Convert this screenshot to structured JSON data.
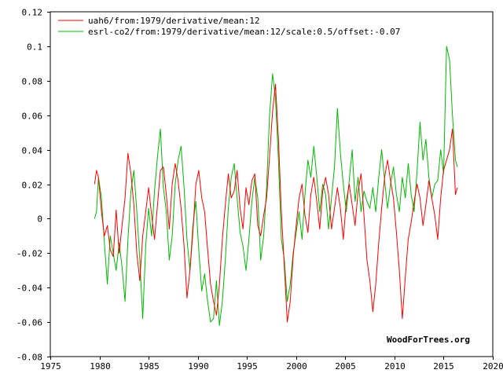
{
  "chart_data": {
    "type": "line",
    "title": "",
    "xlabel": "",
    "ylabel": "",
    "xlim": [
      1975,
      2020
    ],
    "ylim": [
      -0.08,
      0.12
    ],
    "grid": false,
    "legend_position": "top-left",
    "x_ticks": [
      1975,
      1980,
      1985,
      1990,
      1995,
      2000,
      2005,
      2010,
      2015,
      2020
    ],
    "x_tick_labels": [
      "1975",
      "1980",
      "1985",
      "1990",
      "1995",
      "2000",
      "2005",
      "2010",
      "2015",
      "2020"
    ],
    "y_ticks": [
      -0.08,
      -0.06,
      -0.04,
      -0.02,
      0,
      0.02,
      0.04,
      0.06,
      0.08,
      0.1,
      0.12
    ],
    "y_tick_labels": [
      "-0.08",
      "-0.06",
      "-0.04",
      "-0.02",
      "0",
      "0.02",
      "0.04",
      "0.06",
      "0.08",
      "0.1",
      "0.12"
    ],
    "credit": "WoodForTrees.org",
    "series": [
      {
        "name": "uah6/from:1979/derivative/mean:12",
        "color": "#ff0000",
        "x": [
          1979.5,
          1979.7,
          1979.9,
          1980.2,
          1980.5,
          1980.8,
          1981.1,
          1981.4,
          1981.7,
          1982.0,
          1982.3,
          1982.6,
          1982.9,
          1983.2,
          1983.5,
          1983.8,
          1984.1,
          1984.4,
          1984.7,
          1985.0,
          1985.3,
          1985.6,
          1985.9,
          1986.2,
          1986.5,
          1986.8,
          1987.1,
          1987.4,
          1987.7,
          1988.0,
          1988.3,
          1988.6,
          1988.9,
          1989.2,
          1989.5,
          1989.8,
          1990.1,
          1990.4,
          1990.7,
          1991.0,
          1991.3,
          1991.6,
          1991.9,
          1992.2,
          1992.5,
          1992.8,
          1993.1,
          1993.4,
          1993.7,
          1994.0,
          1994.3,
          1994.6,
          1994.9,
          1995.2,
          1995.5,
          1995.8,
          1996.1,
          1996.4,
          1996.7,
          1997.0,
          1997.3,
          1997.6,
          1997.9,
          1998.2,
          1998.5,
          1998.8,
          1999.1,
          1999.4,
          1999.7,
          2000.0,
          2000.3,
          2000.6,
          2000.9,
          2001.2,
          2001.5,
          2001.8,
          2002.1,
          2002.4,
          2002.7,
          2003.0,
          2003.3,
          2003.6,
          2003.9,
          2004.2,
          2004.5,
          2004.8,
          2005.1,
          2005.4,
          2005.7,
          2006.0,
          2006.3,
          2006.6,
          2006.9,
          2007.2,
          2007.5,
          2007.8,
          2008.1,
          2008.4,
          2008.7,
          2009.0,
          2009.3,
          2009.6,
          2009.9,
          2010.2,
          2010.5,
          2010.8,
          2011.1,
          2011.4,
          2011.7,
          2012.0,
          2012.3,
          2012.6,
          2012.9,
          2013.2,
          2013.5,
          2013.8,
          2014.1,
          2014.4,
          2014.7,
          2015.0,
          2015.3,
          2015.6,
          2015.9,
          2016.2,
          2016.4
        ],
        "values": [
          0.02,
          0.028,
          0.024,
          0.004,
          -0.01,
          -0.004,
          -0.018,
          -0.022,
          0.005,
          -0.02,
          -0.004,
          0.012,
          0.038,
          0.026,
          0.008,
          -0.02,
          -0.036,
          -0.01,
          0.004,
          0.018,
          0.002,
          -0.012,
          0.008,
          0.028,
          0.03,
          0.014,
          -0.006,
          0.02,
          0.032,
          0.022,
          0.006,
          -0.016,
          -0.046,
          -0.03,
          -0.008,
          0.02,
          0.028,
          0.012,
          0.004,
          -0.018,
          -0.038,
          -0.048,
          -0.056,
          -0.038,
          -0.012,
          0.008,
          0.026,
          0.012,
          0.016,
          0.028,
          0.006,
          -0.006,
          0.018,
          0.008,
          0.022,
          0.026,
          -0.004,
          -0.01,
          0.002,
          0.012,
          0.036,
          0.062,
          0.078,
          0.046,
          0.004,
          -0.028,
          -0.06,
          -0.048,
          -0.022,
          -0.004,
          0.012,
          0.02,
          0.002,
          -0.008,
          0.014,
          0.024,
          0.01,
          -0.006,
          0.016,
          0.024,
          0.014,
          -0.006,
          0.006,
          0.018,
          0.006,
          -0.012,
          0.01,
          0.02,
          0.008,
          -0.004,
          0.016,
          0.026,
          0.002,
          -0.024,
          -0.036,
          -0.054,
          -0.038,
          -0.014,
          0.006,
          0.024,
          0.034,
          0.022,
          0.012,
          -0.008,
          -0.03,
          -0.058,
          -0.034,
          -0.012,
          -0.002,
          0.01,
          0.02,
          0.012,
          -0.004,
          0.008,
          0.022,
          0.012,
          0.002,
          -0.012,
          0.012,
          0.028,
          0.034,
          0.04,
          0.052,
          0.014,
          0.018
        ],
        "width": 1
      },
      {
        "name": "esrl-co2/from:1979/derivative/mean:12/scale:0.5/offset:-0.07",
        "color": "#00bb00",
        "x": [
          1979.5,
          1979.7,
          1979.9,
          1980.2,
          1980.5,
          1980.8,
          1981.1,
          1981.4,
          1981.7,
          1982.0,
          1982.3,
          1982.6,
          1982.9,
          1983.2,
          1983.5,
          1983.8,
          1984.1,
          1984.4,
          1984.7,
          1985.0,
          1985.3,
          1985.6,
          1985.9,
          1986.2,
          1986.5,
          1986.8,
          1987.1,
          1987.4,
          1987.7,
          1988.0,
          1988.3,
          1988.6,
          1988.9,
          1989.2,
          1989.5,
          1989.8,
          1990.1,
          1990.4,
          1990.7,
          1991.0,
          1991.3,
          1991.6,
          1991.9,
          1992.2,
          1992.5,
          1992.8,
          1993.1,
          1993.4,
          1993.7,
          1994.0,
          1994.3,
          1994.6,
          1994.9,
          1995.2,
          1995.5,
          1995.8,
          1996.1,
          1996.4,
          1996.7,
          1997.0,
          1997.3,
          1997.6,
          1997.9,
          1998.2,
          1998.5,
          1998.8,
          1999.1,
          1999.4,
          1999.7,
          2000.0,
          2000.3,
          2000.6,
          2000.9,
          2001.2,
          2001.5,
          2001.8,
          2002.1,
          2002.4,
          2002.7,
          2003.0,
          2003.3,
          2003.6,
          2003.9,
          2004.2,
          2004.5,
          2004.8,
          2005.1,
          2005.4,
          2005.7,
          2006.0,
          2006.3,
          2006.6,
          2006.9,
          2007.2,
          2007.5,
          2007.8,
          2008.1,
          2008.4,
          2008.7,
          2009.0,
          2009.3,
          2009.6,
          2009.9,
          2010.2,
          2010.5,
          2010.8,
          2011.1,
          2011.4,
          2011.7,
          2012.0,
          2012.3,
          2012.6,
          2012.9,
          2013.2,
          2013.5,
          2013.8,
          2014.1,
          2014.4,
          2014.7,
          2015.0,
          2015.3,
          2015.6,
          2015.9,
          2016.2,
          2016.4
        ],
        "values": [
          0.0,
          0.004,
          0.024,
          0.012,
          -0.014,
          -0.038,
          -0.01,
          -0.02,
          -0.03,
          -0.014,
          -0.028,
          -0.048,
          -0.012,
          0.016,
          0.028,
          0.004,
          -0.024,
          -0.058,
          -0.016,
          0.006,
          -0.01,
          0.016,
          0.036,
          0.052,
          0.018,
          0.004,
          -0.024,
          -0.01,
          0.02,
          0.034,
          0.042,
          0.018,
          -0.012,
          -0.03,
          -0.004,
          0.01,
          -0.018,
          -0.042,
          -0.032,
          -0.048,
          -0.06,
          -0.058,
          -0.036,
          -0.062,
          -0.048,
          -0.024,
          0.006,
          0.024,
          0.032,
          0.012,
          -0.008,
          -0.016,
          -0.03,
          -0.012,
          0.01,
          0.024,
          0.012,
          -0.024,
          -0.01,
          0.018,
          0.06,
          0.084,
          0.07,
          0.034,
          -0.012,
          -0.024,
          -0.048,
          -0.038,
          -0.02,
          -0.008,
          0.004,
          -0.012,
          0.014,
          0.034,
          0.024,
          0.042,
          0.024,
          0.004,
          0.02,
          0.014,
          -0.006,
          0.012,
          0.03,
          0.064,
          0.038,
          0.02,
          0.004,
          0.022,
          0.04,
          0.01,
          0.024,
          0.004,
          0.016,
          0.01,
          0.006,
          0.018,
          0.004,
          0.024,
          0.04,
          0.022,
          0.006,
          0.02,
          0.03,
          0.014,
          0.004,
          0.024,
          0.012,
          0.032,
          0.014,
          0.004,
          0.028,
          0.056,
          0.034,
          0.046,
          0.024,
          0.012,
          0.02,
          0.022,
          0.04,
          0.026,
          0.1,
          0.092,
          0.06,
          0.034,
          0.03
        ],
        "width": 1
      }
    ]
  }
}
